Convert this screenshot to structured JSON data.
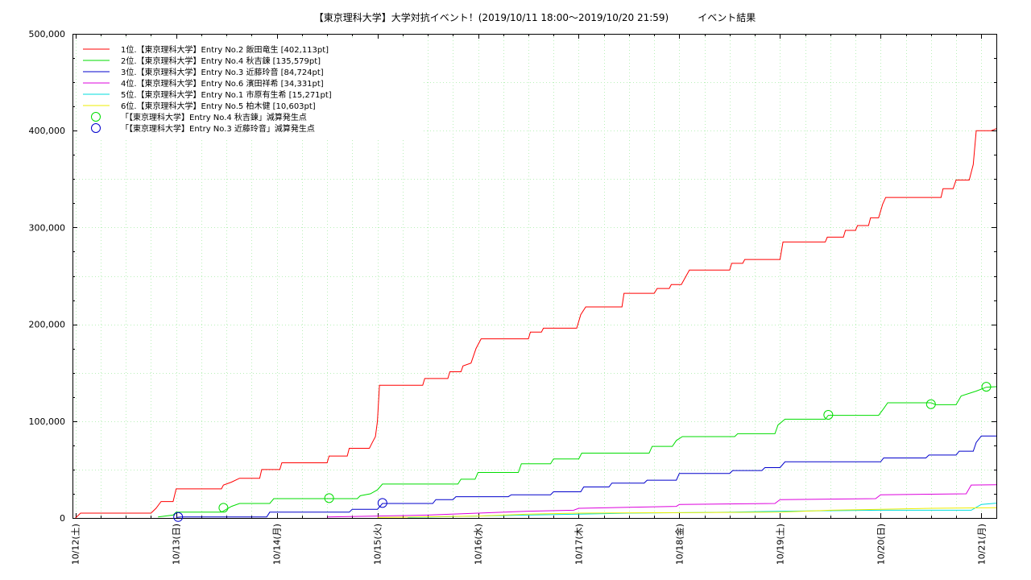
{
  "chart_data": {
    "type": "line",
    "title": "【東京理科大学】大学対抗イベント！(2019/10/11 18:00～2019/10/20 21:59)　　　イベント結果",
    "xlabel": "",
    "ylabel": "",
    "x_ticks": [
      "10/12(土)",
      "10/13(日)",
      "10/14(月)",
      "10/15(火)",
      "10/16(水)",
      "10/17(木)",
      "10/18(金)",
      "10/19(土)",
      "10/20(日)",
      "10/21(月)"
    ],
    "xlim": [
      -0.03,
      9.15
    ],
    "ylim": [
      0,
      500000
    ],
    "y_ticks": [
      {
        "value": 0,
        "label": "0"
      },
      {
        "value": 100000,
        "label": "100,000"
      },
      {
        "value": 200000,
        "label": "200,000"
      },
      {
        "value": 300000,
        "label": "300,000"
      },
      {
        "value": 400000,
        "label": "400,000"
      },
      {
        "value": 500000,
        "label": "500,000"
      }
    ],
    "grid": true,
    "legend_position": "top-left",
    "series": [
      {
        "name": "1位.【東京理科大学】Entry No.2 飯田竜生 [402,113pt]",
        "color": "#ff0000",
        "points": [
          [
            0,
            0
          ],
          [
            0.05,
            5000
          ],
          [
            0.75,
            5000
          ],
          [
            0.8,
            10000
          ],
          [
            0.85,
            17000
          ],
          [
            0.97,
            17000
          ],
          [
            1.0,
            30000
          ],
          [
            1.45,
            30000
          ],
          [
            1.47,
            34000
          ],
          [
            1.55,
            37000
          ],
          [
            1.63,
            41000
          ],
          [
            1.83,
            41000
          ],
          [
            1.85,
            50000
          ],
          [
            2.03,
            50000
          ],
          [
            2.05,
            57000
          ],
          [
            2.5,
            57000
          ],
          [
            2.52,
            64000
          ],
          [
            2.7,
            64000
          ],
          [
            2.72,
            72000
          ],
          [
            2.92,
            72000
          ],
          [
            2.95,
            78000
          ],
          [
            2.98,
            84000
          ],
          [
            3.0,
            100000
          ],
          [
            3.02,
            137000
          ],
          [
            3.45,
            137000
          ],
          [
            3.47,
            144000
          ],
          [
            3.7,
            144000
          ],
          [
            3.72,
            151000
          ],
          [
            3.83,
            151000
          ],
          [
            3.85,
            157000
          ],
          [
            3.93,
            160000
          ],
          [
            3.98,
            175000
          ],
          [
            4.03,
            185000
          ],
          [
            4.5,
            185000
          ],
          [
            4.52,
            192000
          ],
          [
            4.63,
            192000
          ],
          [
            4.65,
            196000
          ],
          [
            4.98,
            196000
          ],
          [
            5.02,
            210000
          ],
          [
            5.07,
            218000
          ],
          [
            5.43,
            218000
          ],
          [
            5.45,
            232000
          ],
          [
            5.75,
            232000
          ],
          [
            5.78,
            237000
          ],
          [
            5.9,
            237000
          ],
          [
            5.92,
            241000
          ],
          [
            6.02,
            241000
          ],
          [
            6.1,
            256000
          ],
          [
            6.5,
            256000
          ],
          [
            6.52,
            263000
          ],
          [
            6.63,
            263000
          ],
          [
            6.65,
            267000
          ],
          [
            7.0,
            267000
          ],
          [
            7.03,
            285000
          ],
          [
            7.45,
            285000
          ],
          [
            7.47,
            290000
          ],
          [
            7.63,
            290000
          ],
          [
            7.65,
            297000
          ],
          [
            7.75,
            297000
          ],
          [
            7.77,
            302000
          ],
          [
            7.88,
            302000
          ],
          [
            7.9,
            310000
          ],
          [
            7.98,
            310000
          ],
          [
            8.02,
            324000
          ],
          [
            8.05,
            331000
          ],
          [
            8.6,
            331000
          ],
          [
            8.62,
            340000
          ],
          [
            8.72,
            340000
          ],
          [
            8.75,
            349000
          ],
          [
            8.88,
            349000
          ],
          [
            8.92,
            365000
          ],
          [
            8.95,
            400000
          ],
          [
            9.1,
            400000
          ],
          [
            9.15,
            402113
          ]
        ]
      },
      {
        "name": "2位.【東京理科大学】Entry No.4 秋吉鍊 [135,579pt]",
        "color": "#00dd00",
        "points": [
          [
            0.82,
            1000
          ],
          [
            0.97,
            3000
          ],
          [
            1.0,
            6000
          ],
          [
            1.45,
            6000
          ],
          [
            1.5,
            9000
          ],
          [
            1.55,
            12000
          ],
          [
            1.63,
            15000
          ],
          [
            1.93,
            15000
          ],
          [
            1.97,
            20000
          ],
          [
            2.5,
            20000
          ],
          [
            2.55,
            20000
          ],
          [
            2.8,
            20000
          ],
          [
            2.83,
            23000
          ],
          [
            2.93,
            25000
          ],
          [
            3.0,
            29000
          ],
          [
            3.05,
            35000
          ],
          [
            3.8,
            35000
          ],
          [
            3.83,
            40000
          ],
          [
            3.97,
            40000
          ],
          [
            4.0,
            47000
          ],
          [
            4.4,
            47000
          ],
          [
            4.43,
            56000
          ],
          [
            4.72,
            56000
          ],
          [
            4.75,
            61000
          ],
          [
            5.0,
            61000
          ],
          [
            5.03,
            67000
          ],
          [
            5.7,
            67000
          ],
          [
            5.73,
            74000
          ],
          [
            5.93,
            74000
          ],
          [
            5.97,
            80000
          ],
          [
            6.03,
            84000
          ],
          [
            6.55,
            84000
          ],
          [
            6.58,
            87000
          ],
          [
            6.95,
            87000
          ],
          [
            6.98,
            96000
          ],
          [
            7.05,
            102000
          ],
          [
            7.45,
            102000
          ],
          [
            7.48,
            106000
          ],
          [
            7.98,
            106000
          ],
          [
            8.03,
            113000
          ],
          [
            8.07,
            119000
          ],
          [
            8.5,
            119000
          ],
          [
            8.55,
            117000
          ],
          [
            8.75,
            117000
          ],
          [
            8.8,
            126000
          ],
          [
            8.95,
            131000
          ],
          [
            9.05,
            135000
          ],
          [
            9.15,
            135579
          ]
        ]
      },
      {
        "name": "3位.【東京理科大学】Entry No.3 近藤玲音 [84,724pt]",
        "color": "#0000cc",
        "points": [
          [
            1.0,
            500
          ],
          [
            1.05,
            1000
          ],
          [
            1.9,
            1000
          ],
          [
            1.93,
            6000
          ],
          [
            2.72,
            6000
          ],
          [
            2.75,
            9000
          ],
          [
            3.0,
            9000
          ],
          [
            3.05,
            15000
          ],
          [
            3.55,
            15000
          ],
          [
            3.58,
            19000
          ],
          [
            3.75,
            19000
          ],
          [
            3.78,
            22000
          ],
          [
            4.3,
            22000
          ],
          [
            4.33,
            24000
          ],
          [
            4.72,
            24000
          ],
          [
            4.75,
            27000
          ],
          [
            5.02,
            27000
          ],
          [
            5.05,
            32000
          ],
          [
            5.3,
            32000
          ],
          [
            5.33,
            36000
          ],
          [
            5.65,
            36000
          ],
          [
            5.68,
            39000
          ],
          [
            5.97,
            39000
          ],
          [
            6.0,
            46000
          ],
          [
            6.5,
            46000
          ],
          [
            6.53,
            49000
          ],
          [
            6.82,
            49000
          ],
          [
            6.85,
            52000
          ],
          [
            7.0,
            52000
          ],
          [
            7.05,
            58000
          ],
          [
            8.0,
            58000
          ],
          [
            8.03,
            62000
          ],
          [
            8.45,
            62000
          ],
          [
            8.48,
            65000
          ],
          [
            8.75,
            65000
          ],
          [
            8.78,
            69000
          ],
          [
            8.92,
            69000
          ],
          [
            8.95,
            78000
          ],
          [
            9.0,
            84724
          ],
          [
            9.15,
            84724
          ]
        ]
      },
      {
        "name": "4位.【東京理科大学】Entry No.6 濱田祥希 [34,331pt]",
        "color": "#dd00dd",
        "points": [
          [
            2.5,
            1000
          ],
          [
            3.0,
            2000
          ],
          [
            3.5,
            3000
          ],
          [
            4.0,
            5000
          ],
          [
            4.5,
            7000
          ],
          [
            4.95,
            8000
          ],
          [
            5.0,
            10000
          ],
          [
            5.5,
            11000
          ],
          [
            5.97,
            12000
          ],
          [
            6.0,
            14000
          ],
          [
            6.95,
            15000
          ],
          [
            7.0,
            19000
          ],
          [
            7.95,
            20000
          ],
          [
            8.0,
            24000
          ],
          [
            8.85,
            25000
          ],
          [
            8.9,
            34000
          ],
          [
            9.15,
            34331
          ]
        ]
      },
      {
        "name": "5位.【東京理科大学】Entry No.1 市原有生希 [15,271pt]",
        "color": "#00dddd",
        "points": [
          [
            3.3,
            500
          ],
          [
            4.0,
            2000
          ],
          [
            5.0,
            4000
          ],
          [
            5.5,
            5000
          ],
          [
            6.5,
            6000
          ],
          [
            7.0,
            7000
          ],
          [
            8.0,
            8000
          ],
          [
            8.9,
            8000
          ],
          [
            9.0,
            14000
          ],
          [
            9.15,
            15271
          ]
        ]
      },
      {
        "name": "6位.【東京理科大学】Entry No.5 柏木健 [10,603pt]",
        "color": "#eeee00",
        "points": [
          [
            3.0,
            500
          ],
          [
            4.0,
            2000
          ],
          [
            4.5,
            4000
          ],
          [
            5.0,
            5000
          ],
          [
            6.0,
            5500
          ],
          [
            7.0,
            6000
          ],
          [
            7.5,
            8000
          ],
          [
            8.0,
            9000
          ],
          [
            8.5,
            10000
          ],
          [
            9.15,
            10603
          ]
        ]
      }
    ],
    "markers": [
      {
        "name": "「【東京理科大学】Entry No.4 秋吉鍊」減算発生点",
        "color": "#00dd00",
        "points": [
          [
            1.47,
            10500
          ],
          [
            2.52,
            20500
          ],
          [
            7.48,
            106500
          ],
          [
            8.5,
            117500
          ],
          [
            9.05,
            135500
          ]
        ]
      },
      {
        "name": "「【東京理科大学】Entry No.3 近藤玲音」減算発生点",
        "color": "#0000cc",
        "points": [
          [
            1.02,
            1000
          ],
          [
            3.05,
            15500
          ]
        ]
      }
    ]
  }
}
